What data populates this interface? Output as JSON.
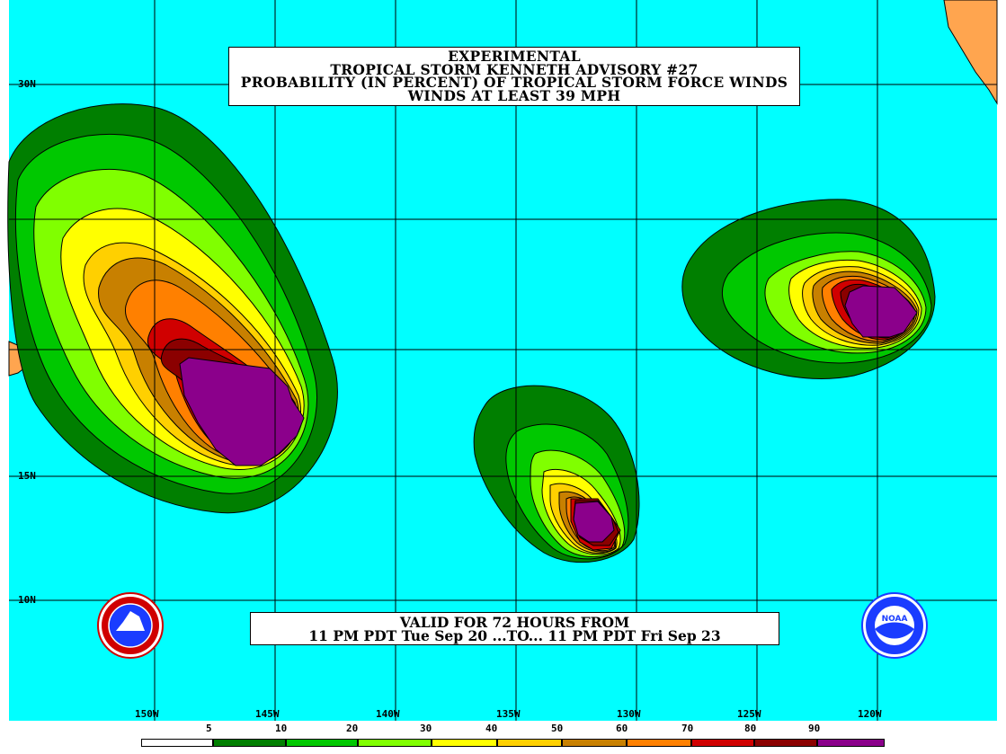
{
  "title": {
    "line1": "EXPERIMENTAL",
    "line2": "TROPICAL STORM KENNETH ADVISORY #27",
    "line3": "PROBABILITY (IN PERCENT) OF TROPICAL STORM FORCE WINDS",
    "line4": "WINDS AT LEAST 39 MPH"
  },
  "valid": {
    "line1": "VALID FOR 72 HOURS FROM",
    "line2": "11 PM PDT Tue Sep 20 ...TO... 11 PM PDT Fri Sep 23"
  },
  "axes": {
    "latitudes": [
      "30N",
      "15N",
      "10N"
    ],
    "longitudes": [
      "150W",
      "145W",
      "140W",
      "135W",
      "130W",
      "125W",
      "120W"
    ]
  },
  "legend": {
    "labels": [
      "5",
      "10",
      "20",
      "30",
      "40",
      "50",
      "60",
      "70",
      "80",
      "90"
    ],
    "colors": [
      "#ffffff",
      "#007f00",
      "#00c800",
      "#80ff00",
      "#ffff00",
      "#ffd000",
      "#c88000",
      "#ff8000",
      "#d00000",
      "#8b0000",
      "#8b008b"
    ]
  },
  "colors": {
    "ocean": "#00ffff",
    "land": "#ffa54f",
    "grid": "#000000"
  },
  "logos": {
    "nws": "nws-logo",
    "noaa": "NOAA"
  }
}
